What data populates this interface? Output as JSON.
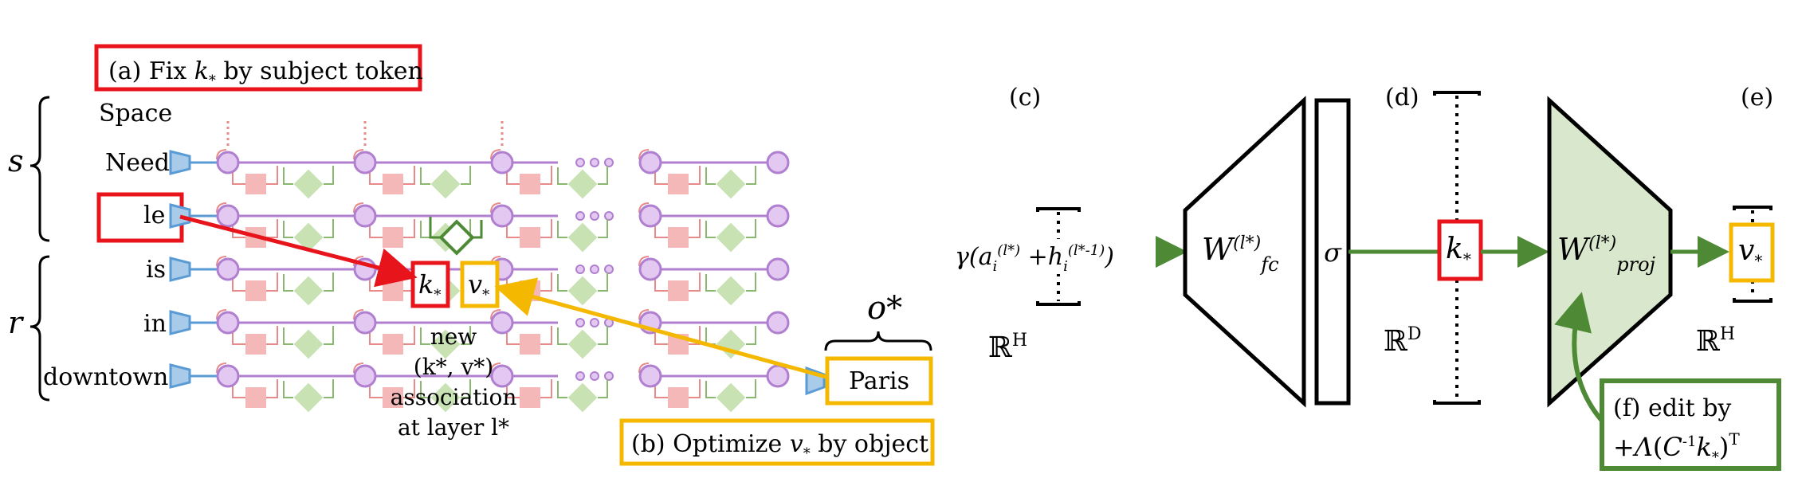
{
  "left": {
    "callout_a": {
      "prefix": "(a) Fix ",
      "k": "k",
      "sub": "*",
      "suffix": " by subject token"
    },
    "callout_b": {
      "prefix": "(b) Optimize ",
      "v": "v",
      "sub": "*",
      "suffix": " by object"
    },
    "brace_s": "s",
    "brace_r": "r",
    "tokens": [
      "Space",
      "Need",
      "le",
      "is",
      "in",
      "downtown"
    ],
    "k_box": {
      "letter": "k",
      "sub": "*"
    },
    "v_box": {
      "letter": "v",
      "sub": "*"
    },
    "assoc_lines": [
      "new",
      "(k*, v*)",
      "association",
      "at layer l*"
    ],
    "object_label": "o*",
    "object_token": "Paris"
  },
  "right": {
    "label_c": "(c)",
    "label_d": "(d)",
    "label_e": "(e)",
    "gamma_expr": "γ(a_i(l*) + h_i(l*-1))",
    "space_c": "ℝH",
    "space_d": "ℝD",
    "space_e": "ℝH",
    "w_fc": "W(l*)fc",
    "sigma": "σ",
    "k_star": "k*",
    "w_proj": "W(l*)proj",
    "v_star": "v*",
    "edit_line1": "(f) edit by",
    "edit_line2": "+Λ(C⁻¹k*)ᵀ"
  },
  "colors": {
    "red": "#e8141b",
    "yellow": "#f5b800",
    "green": "#4e8a35",
    "purple": "#b07fd0",
    "purple_fill": "#e3c8f2",
    "pink": "#f4b8b8",
    "pink_line": "#e88a8a",
    "light_green": "#c8e2b4",
    "blue": "#5b9bd5",
    "blue_fill": "#a9cbea"
  }
}
